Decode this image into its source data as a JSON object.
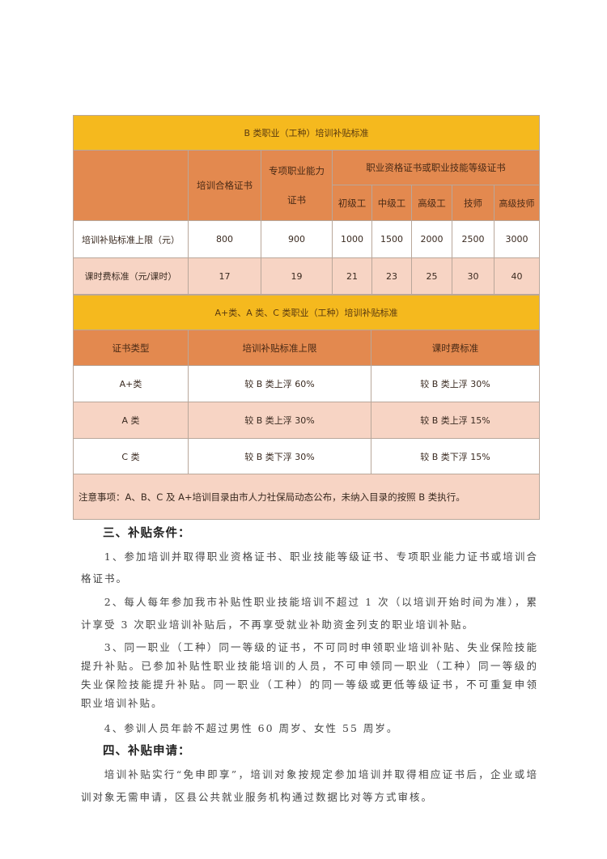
{
  "table_b": {
    "title": "B 类职业（工种）培训补贴标准",
    "col_training_cert": "培训合格证书",
    "col_special": "专项职业能力证书",
    "col_group": "职业资格证书或职业技能等级证书",
    "levels": [
      "初级工",
      "中级工",
      "高级工",
      "技师",
      "高级技师"
    ],
    "rows": [
      {
        "label": "培训补贴标准上限（元）",
        "values": [
          "800",
          "900",
          "1000",
          "1500",
          "2000",
          "2500",
          "3000"
        ]
      },
      {
        "label": "课时费标准（元/课时）",
        "values": [
          "17",
          "19",
          "21",
          "23",
          "25",
          "30",
          "40"
        ]
      }
    ],
    "colors": {
      "title": "#f5b91e",
      "header": "#e3894f",
      "pink": "#f7d4c4"
    }
  },
  "table_a": {
    "title": "A+类、A 类、C 类职业（工种）培训补贴标准",
    "headers": [
      "证书类型",
      "培训补贴标准上限",
      "课时费标准"
    ],
    "rows": [
      [
        "A+类",
        "较 B 类上浮 60%",
        "较 B 类上浮 30%"
      ],
      [
        "A 类",
        "较 B 类上浮 30%",
        "较 B 类上浮 15%"
      ],
      [
        "C 类",
        "较 B 类下浮 30%",
        "较 B 类下浮 15%"
      ]
    ],
    "note": "注意事项：A、B、C 及 A+培训目录由市人力社保局动态公布，未纳入目录的按照 B 类执行。"
  },
  "section3": {
    "heading": "三、补贴条件：",
    "items": [
      "1、参加培训并取得职业资格证书、职业技能等级证书、专项职业能力证书或培训合格证书。",
      "2、每人每年参加我市补贴性职业技能培训不超过 1 次（以培训开始时间为准），累计享受 3 次职业培训补贴后，不再享受就业补助资金列支的职业培训补贴。",
      "3、同一职业（工种）同一等级的证书，不可同时申领职业培训补贴、失业保险技能提升补贴。已参加补贴性职业技能培训的人员，不可申领同一职业（工种）同一等级的失业保险技能提升补贴。同一职业（工种）的同一等级或更低等级证书，不可重复申领职业培训补贴。",
      "4、参训人员年龄不超过男性 60 周岁、女性 55 周岁。"
    ]
  },
  "section4": {
    "heading": "四、补贴申请：",
    "text": "培训补贴实行“免申即享”，培训对象按规定参加培训并取得相应证书后，企业或培训对象无需申请，区县公共就业服务机构通过数据比对等方式审核。"
  }
}
